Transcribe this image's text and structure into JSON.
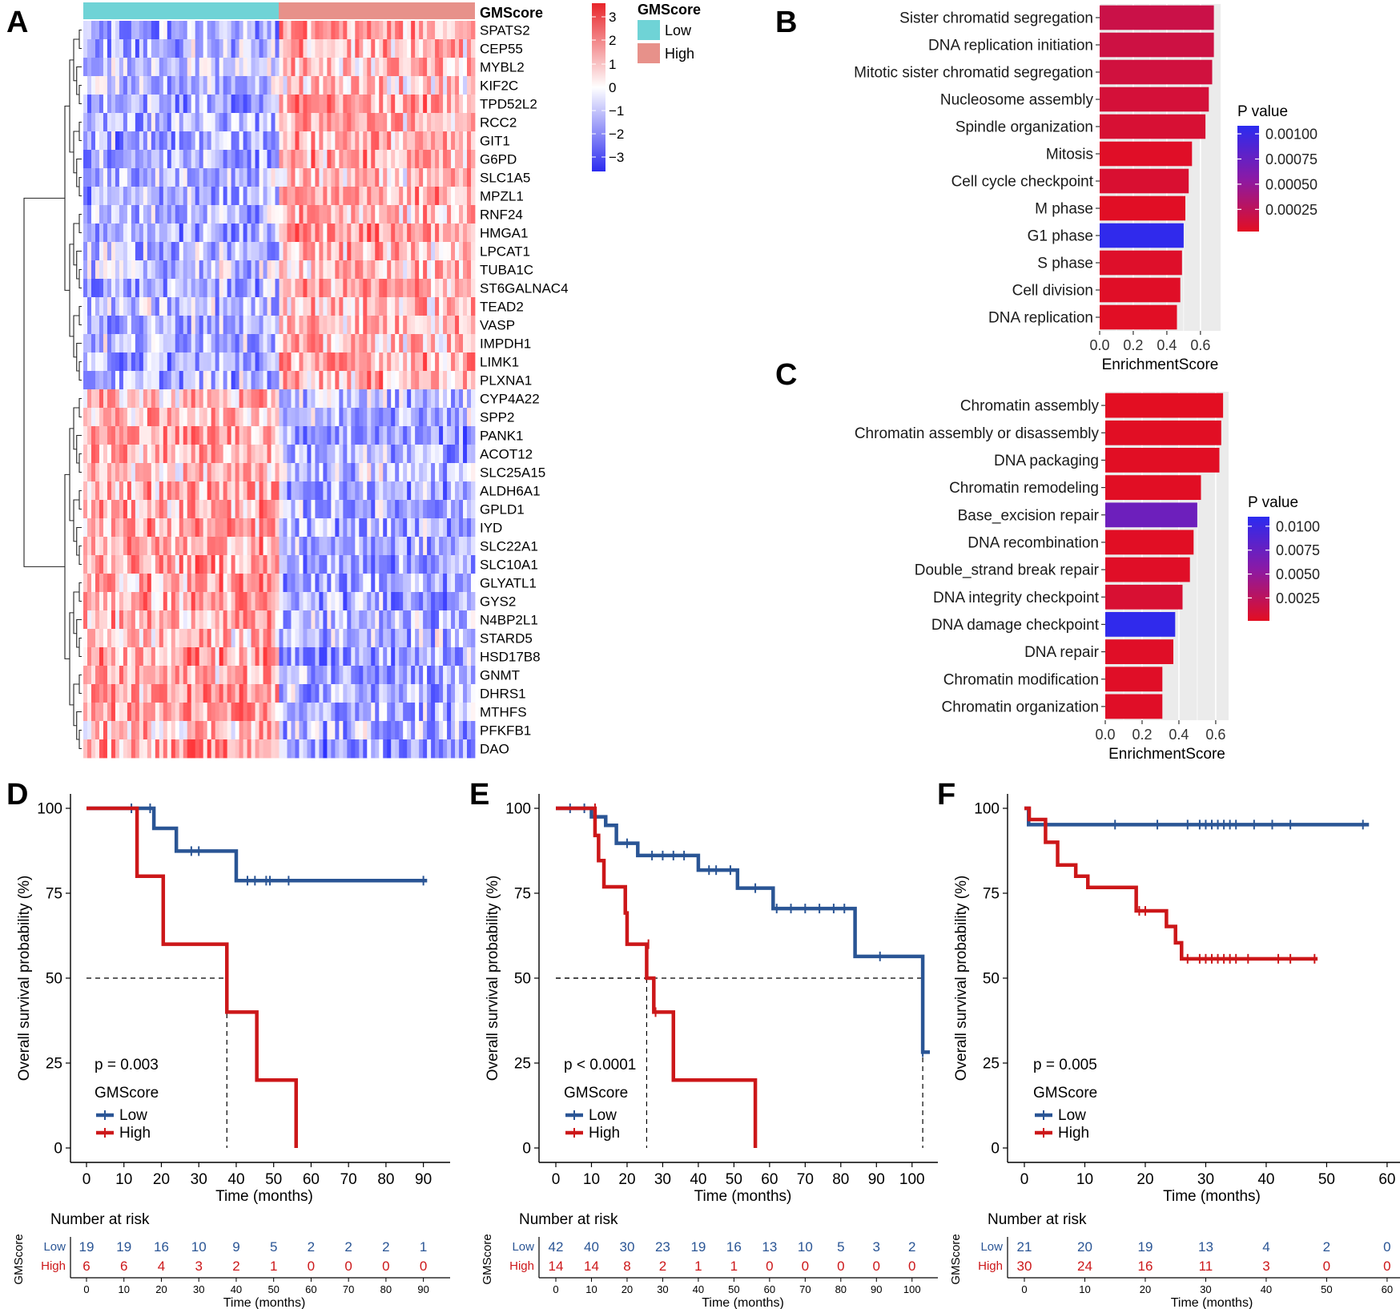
{
  "colors": {
    "low": "#6fd3d6",
    "high": "#e7918a",
    "heat_low": "#2b2bf0",
    "heat_mid": "#ffffff",
    "heat_high": "#e8252a",
    "km_low": "#2a5595",
    "km_high": "#cc1719",
    "bar_grey_bg": "#ebebeb"
  },
  "panels": {
    "A": "A",
    "B": "B",
    "C": "C",
    "D": "D",
    "E": "E",
    "F": "F"
  },
  "heatmap": {
    "annotation_title": "GMScore",
    "legend_title": "GMScore",
    "legend_low": "Low",
    "legend_high": "High",
    "colorbar_ticks": [
      "3",
      "2",
      "1",
      "0",
      "−1",
      "−2",
      "−3"
    ],
    "genes_up": [
      "SPATS2",
      "CEP55",
      "MYBL2",
      "KIF2C",
      "TPD52L2",
      "RCC2",
      "GIT1",
      "G6PD",
      "SLC1A5",
      "MPZL1",
      "RNF24",
      "HMGA1",
      "LPCAT1",
      "TUBA1C",
      "ST6GALNAC4",
      "TEAD2",
      "VASP",
      "IMPDH1",
      "LIMK1",
      "PLXNA1"
    ],
    "genes_down": [
      "CYP4A22",
      "SPP2",
      "PANK1",
      "ACOT12",
      "SLC25A15",
      "ALDH6A1",
      "GPLD1",
      "IYD",
      "SLC22A1",
      "SLC10A1",
      "GLYATL1",
      "GYS2",
      "N4BP2L1",
      "STARD5",
      "HSD17B8",
      "GNMT",
      "DHRS1",
      "MTHFS",
      "PFKFB1",
      "DAO"
    ]
  },
  "chart_data": [
    {
      "id": "B",
      "type": "bar",
      "orientation": "horizontal",
      "categories": [
        "Sister chromatid segregation",
        "DNA replication initiation",
        "Mitotic sister chromatid segregation",
        "Nucleosome assembly",
        "Spindle organization",
        "Mitosis",
        "Cell cycle checkpoint",
        "M phase",
        "G1 phase",
        "S phase",
        "Cell division",
        "DNA replication"
      ],
      "values": [
        0.68,
        0.68,
        0.67,
        0.65,
        0.63,
        0.55,
        0.53,
        0.51,
        0.5,
        0.49,
        0.48,
        0.46
      ],
      "pvalues": [
        0.00018,
        0.00016,
        0.00014,
        0.00012,
        0.0001,
        5e-05,
        9e-05,
        4e-05,
        0.00105,
        6e-05,
        5e-05,
        4e-05
      ],
      "xlabel": "EnrichmentScore",
      "xlim": [
        0,
        0.72
      ],
      "xticks": [
        "0.0",
        "0.2",
        "0.4",
        "0.6"
      ],
      "legend_title": "P value",
      "legend_ticks": [
        "0.00100",
        "0.00075",
        "0.00050",
        "0.00025"
      ],
      "legend_range": [
        3e-05,
        0.00108
      ]
    },
    {
      "id": "C",
      "type": "bar",
      "orientation": "horizontal",
      "categories": [
        "Chromatin assembly",
        "Chromatin assembly or disassembly",
        "DNA packaging",
        "Chromatin remodeling",
        "Base_excision repair",
        "DNA recombination",
        "Double_strand break repair",
        "DNA integrity checkpoint",
        "DNA damage checkpoint",
        "DNA repair",
        "Chromatin modification",
        "Chromatin organization"
      ],
      "values": [
        0.64,
        0.63,
        0.62,
        0.52,
        0.5,
        0.48,
        0.46,
        0.42,
        0.38,
        0.37,
        0.31,
        0.31
      ],
      "pvalues": [
        0.0001,
        0.0002,
        0.0002,
        0.0002,
        0.0072,
        0.0002,
        0.0003,
        0.0008,
        0.0107,
        0.0003,
        0.0003,
        0.0003
      ],
      "xlabel": "EnrichmentScore",
      "xlim": [
        0,
        0.67
      ],
      "xticks": [
        "0.0",
        "0.2",
        "0.4",
        "0.6"
      ],
      "legend_title": "P value",
      "legend_ticks": [
        "0.0100",
        "0.0075",
        "0.0050",
        "0.0025"
      ],
      "legend_range": [
        0.0001,
        0.011
      ]
    },
    {
      "id": "D",
      "type": "line",
      "subtype": "kaplan-meier",
      "xlabel": "Time (months)",
      "ylabel": "Overall survival probability (%)",
      "xlim": [
        0,
        95
      ],
      "ylim": [
        0,
        100
      ],
      "xticks": [
        0,
        10,
        20,
        30,
        40,
        50,
        60,
        70,
        80,
        90
      ],
      "yticks": [
        0,
        25,
        50,
        75,
        100
      ],
      "pvalue": "p = 0.003",
      "legend_title": "GMScore",
      "series": [
        {
          "name": "Low",
          "steps": [
            [
              0,
              100
            ],
            [
              18,
              94.1
            ],
            [
              24,
              87.4
            ],
            [
              40,
              78.7
            ],
            [
              91,
              78.7
            ]
          ],
          "censors": [
            [
              12,
              100
            ],
            [
              17,
              100
            ],
            [
              28,
              87.4
            ],
            [
              30,
              87.4
            ],
            [
              43,
              78.7
            ],
            [
              45,
              78.7
            ],
            [
              48,
              78.7
            ],
            [
              49,
              78.7
            ],
            [
              54,
              78.7
            ],
            [
              90,
              78.7
            ]
          ]
        },
        {
          "name": "High",
          "steps": [
            [
              0,
              100
            ],
            [
              13.5,
              80
            ],
            [
              20.5,
              60
            ],
            [
              37.5,
              40
            ],
            [
              45.5,
              20
            ],
            [
              56,
              0
            ]
          ],
          "censors": []
        }
      ],
      "median_lines": [
        {
          "x": 37.5,
          "y": 50
        }
      ],
      "risk_table": {
        "title": "Number at risk",
        "ylabel": "GMScore",
        "xlabel": "Time (months)",
        "times": [
          0,
          10,
          20,
          30,
          40,
          50,
          60,
          70,
          80,
          90
        ],
        "rows": [
          {
            "name": "Low",
            "counts": [
              "19",
              "19",
              "16",
              "10",
              "9",
              "5",
              "2",
              "2",
              "2",
              "1"
            ]
          },
          {
            "name": "High",
            "counts": [
              "6",
              "6",
              "4",
              "3",
              "2",
              "1",
              "0",
              "0",
              "0",
              "0"
            ]
          }
        ]
      }
    },
    {
      "id": "E",
      "type": "line",
      "subtype": "kaplan-meier",
      "xlabel": "Time (months)",
      "ylabel": "Overall survival probability (%)",
      "xlim": [
        0,
        105
      ],
      "ylim": [
        0,
        100
      ],
      "xticks": [
        0,
        10,
        20,
        30,
        40,
        50,
        60,
        70,
        80,
        90,
        100
      ],
      "yticks": [
        0,
        25,
        50,
        75,
        100
      ],
      "pvalue": "p < 0.0001",
      "legend_title": "GMScore",
      "series": [
        {
          "name": "Low",
          "steps": [
            [
              0,
              100
            ],
            [
              10,
              97.5
            ],
            [
              14,
              95
            ],
            [
              17,
              89.7
            ],
            [
              23,
              86.1
            ],
            [
              40,
              81.8
            ],
            [
              51,
              76.5
            ],
            [
              61,
              70.5
            ],
            [
              84,
              56.4
            ],
            [
              103,
              28.2
            ],
            [
              105,
              28.2
            ]
          ],
          "censors": [
            [
              4,
              100
            ],
            [
              8,
              100
            ],
            [
              20,
              89.7
            ],
            [
              27,
              86.1
            ],
            [
              30,
              86.1
            ],
            [
              33,
              86.1
            ],
            [
              36,
              86.1
            ],
            [
              43,
              81.8
            ],
            [
              45,
              81.8
            ],
            [
              49,
              81.8
            ],
            [
              56,
              76.5
            ],
            [
              62,
              70.5
            ],
            [
              66,
              70.5
            ],
            [
              70,
              70.5
            ],
            [
              74,
              70.5
            ],
            [
              78,
              70.5
            ],
            [
              81,
              70.5
            ],
            [
              91,
              56.4
            ],
            [
              103,
              28.2
            ]
          ]
        },
        {
          "name": "High",
          "steps": [
            [
              0,
              100
            ],
            [
              11,
              92
            ],
            [
              12,
              84.6
            ],
            [
              13.5,
              76.9
            ],
            [
              19.5,
              69.2
            ],
            [
              20,
              60
            ],
            [
              25.5,
              50
            ],
            [
              27.5,
              40
            ],
            [
              33,
              20
            ],
            [
              56,
              0
            ]
          ],
          "censors": [
            [
              11,
              100
            ],
            [
              26,
              60
            ],
            [
              28,
              40
            ]
          ]
        }
      ],
      "median_lines": [
        {
          "x": 25.5,
          "y": 50
        },
        {
          "x": 103,
          "y": 50
        }
      ],
      "risk_table": {
        "title": "Number at risk",
        "ylabel": "GMScore",
        "xlabel": "Time (months)",
        "times": [
          0,
          10,
          20,
          30,
          40,
          50,
          60,
          70,
          80,
          90,
          100
        ],
        "rows": [
          {
            "name": "Low",
            "counts": [
              "42",
              "40",
              "30",
              "23",
              "19",
              "16",
              "13",
              "10",
              "5",
              "3",
              "2"
            ]
          },
          {
            "name": "High",
            "counts": [
              "14",
              "14",
              "8",
              "2",
              "1",
              "1",
              "0",
              "0",
              "0",
              "0",
              "0"
            ]
          }
        ]
      }
    },
    {
      "id": "F",
      "type": "line",
      "subtype": "kaplan-meier",
      "xlabel": "Time (months)",
      "ylabel": "Overall survival probability (%)",
      "xlim": [
        0,
        62
      ],
      "ylim": [
        0,
        100
      ],
      "xticks": [
        0,
        10,
        20,
        30,
        40,
        50,
        60
      ],
      "yticks": [
        0,
        25,
        50,
        75,
        100
      ],
      "pvalue": "p = 0.005",
      "legend_title": "GMScore",
      "series": [
        {
          "name": "Low",
          "steps": [
            [
              0,
              100
            ],
            [
              0.7,
              95.2
            ],
            [
              57,
              95.2
            ]
          ],
          "censors": [
            [
              15,
              95.2
            ],
            [
              22,
              95.2
            ],
            [
              27,
              95.2
            ],
            [
              29,
              95.2
            ],
            [
              30,
              95.2
            ],
            [
              31,
              95.2
            ],
            [
              32,
              95.2
            ],
            [
              33,
              95.2
            ],
            [
              34,
              95.2
            ],
            [
              35,
              95.2
            ],
            [
              38,
              95.2
            ],
            [
              41,
              95.2
            ],
            [
              44,
              95.2
            ],
            [
              56,
              95.2
            ]
          ]
        },
        {
          "name": "High",
          "steps": [
            [
              0,
              100
            ],
            [
              0.8,
              96.7
            ],
            [
              3.5,
              90
            ],
            [
              5.5,
              83.3
            ],
            [
              8.5,
              80
            ],
            [
              10.5,
              76.7
            ],
            [
              18.5,
              69.8
            ],
            [
              23.5,
              65.2
            ],
            [
              25,
              60.4
            ],
            [
              26,
              55.7
            ],
            [
              48.5,
              55.7
            ]
          ],
          "censors": [
            [
              19,
              69.8
            ],
            [
              20,
              69.8
            ],
            [
              27,
              55.7
            ],
            [
              29,
              55.7
            ],
            [
              30,
              55.7
            ],
            [
              31,
              55.7
            ],
            [
              32,
              55.7
            ],
            [
              33,
              55.7
            ],
            [
              34,
              55.7
            ],
            [
              35,
              55.7
            ],
            [
              37,
              55.7
            ],
            [
              42,
              55.7
            ],
            [
              44,
              55.7
            ],
            [
              48,
              55.7
            ]
          ]
        }
      ],
      "median_lines": [],
      "risk_table": {
        "title": "Number at risk",
        "ylabel": "GMScore",
        "xlabel": "Time (months)",
        "times": [
          0,
          10,
          20,
          30,
          40,
          50,
          60
        ],
        "rows": [
          {
            "name": "Low",
            "counts": [
              "21",
              "20",
              "19",
              "13",
              "4",
              "2",
              "0"
            ]
          },
          {
            "name": "High",
            "counts": [
              "30",
              "24",
              "16",
              "11",
              "3",
              "0",
              "0"
            ]
          }
        ]
      }
    }
  ]
}
